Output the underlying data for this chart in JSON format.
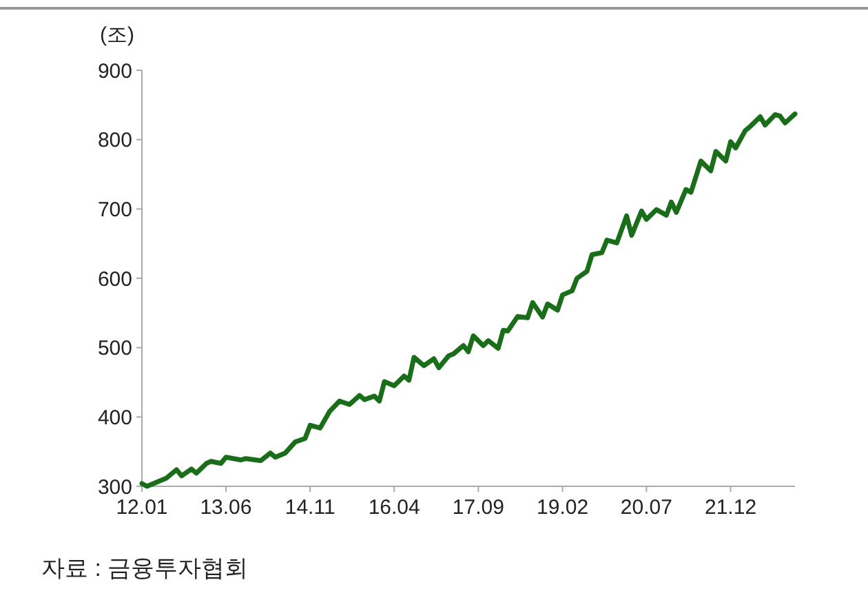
{
  "chart_data": {
    "type": "line",
    "ylabel": "(조)",
    "annotations": [
      "자료 : 금융투자협회"
    ],
    "x": [
      "2012-01",
      "2012-02",
      "2012-06",
      "2012-08",
      "2012-09",
      "2012-11",
      "2012-12",
      "2013-02",
      "2013-03",
      "2013-05",
      "2013-06",
      "2013-09",
      "2013-10",
      "2014-01",
      "2014-03",
      "2014-04",
      "2014-06",
      "2014-08",
      "2014-10",
      "2014-11",
      "2015-01",
      "2015-03",
      "2015-05",
      "2015-07",
      "2015-09",
      "2015-10",
      "2015-12",
      "2016-01",
      "2016-02",
      "2016-04",
      "2016-06",
      "2016-07",
      "2016-08",
      "2016-10",
      "2016-12",
      "2017-01",
      "2017-03",
      "2017-04",
      "2017-06",
      "2017-07",
      "2017-08",
      "2017-10",
      "2017-11",
      "2018-01",
      "2018-02",
      "2018-03",
      "2018-05",
      "2018-07",
      "2018-08",
      "2018-10",
      "2018-11",
      "2019-01",
      "2019-02",
      "2019-04",
      "2019-05",
      "2019-07",
      "2019-08",
      "2019-10",
      "2019-11",
      "2020-01",
      "2020-03",
      "2020-04",
      "2020-06",
      "2020-07",
      "2020-09",
      "2020-11",
      "2020-12",
      "2021-01",
      "2021-03",
      "2021-04",
      "2021-06",
      "2021-08",
      "2021-09",
      "2021-11",
      "2021-12",
      "2022-01",
      "2022-03",
      "2022-04",
      "2022-06",
      "2022-07",
      "2022-09",
      "2022-10",
      "2022-11",
      "2023-01"
    ],
    "series": [
      {
        "color": "#1a6e1a",
        "values": [
          304,
          300,
          312,
          324,
          315,
          325,
          319,
          333,
          336,
          333,
          342,
          338,
          340,
          337,
          348,
          342,
          348,
          364,
          369,
          388,
          384,
          408,
          423,
          418,
          431,
          425,
          430,
          423,
          451,
          445,
          459,
          453,
          486,
          474,
          484,
          471,
          488,
          491,
          503,
          494,
          517,
          503,
          510,
          499,
          525,
          524,
          545,
          543,
          565,
          544,
          563,
          554,
          576,
          582,
          600,
          610,
          634,
          637,
          655,
          651,
          690,
          662,
          697,
          685,
          699,
          691,
          710,
          695,
          728,
          724,
          769,
          755,
          783,
          769,
          797,
          788,
          813,
          819,
          833,
          821,
          836,
          834,
          824,
          837
        ]
      }
    ],
    "xlim": [
      "2012-01",
      "2023-01"
    ],
    "xticks": [
      {
        "value": "2012-01",
        "label": "12.01"
      },
      {
        "value": "2013-06",
        "label": "13.06"
      },
      {
        "value": "2014-11",
        "label": "14.11"
      },
      {
        "value": "2016-04",
        "label": "16.04"
      },
      {
        "value": "2017-09",
        "label": "17.09"
      },
      {
        "value": "2019-02",
        "label": "19.02"
      },
      {
        "value": "2020-07",
        "label": "20.07"
      },
      {
        "value": "2021-12",
        "label": "21.12"
      }
    ],
    "ylim": [
      300,
      900
    ],
    "yticks": [
      300,
      400,
      500,
      600,
      700,
      800,
      900
    ],
    "grid": false,
    "marker": "none",
    "line_style": "solid"
  }
}
